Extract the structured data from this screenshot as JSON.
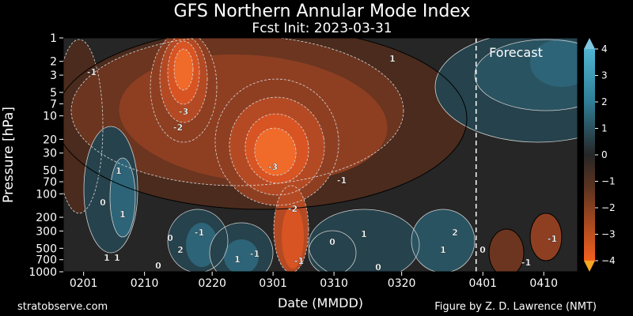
{
  "title": "GFS Northern Annular Mode Index",
  "subtitle": "Fcst Init: 2023-03-31",
  "credit_left": "stratobserve.com",
  "credit_right": "Figure by Z. D. Lawrence (NMT)",
  "forecast_label": "Forecast",
  "chart_data": {
    "type": "heatmap",
    "title": "GFS Northern Annular Mode Index",
    "xlabel": "Date (MMDD)",
    "ylabel": "Pressure [hPa]",
    "x_ticks": [
      "0201",
      "0210",
      "0220",
      "0301",
      "0310",
      "0320",
      "0401",
      "0410"
    ],
    "x_range": [
      "0129",
      "0415"
    ],
    "y_ticks": [
      1,
      2,
      3,
      5,
      7,
      10,
      20,
      30,
      50,
      70,
      100,
      200,
      300,
      500,
      700,
      1000
    ],
    "y_scale": "log",
    "y_range": [
      1000,
      1
    ],
    "forecast_start": "0331",
    "colorbar": {
      "range": [
        -4,
        4
      ],
      "ticks": [
        4,
        3,
        2,
        1,
        0,
        -1,
        -2,
        -3,
        -4
      ],
      "positive_color": "#3a9bb8",
      "negative_color": "#f05a1e",
      "neutral_color": "#2a2a2a"
    },
    "contour_labels": [
      "-1",
      "-2",
      "-3",
      "-3",
      "-2",
      "-1",
      "-1",
      "-1",
      "-1",
      "0",
      "0",
      "1",
      "1",
      "1",
      "2",
      "2",
      "1",
      "0",
      "0",
      "1",
      "0",
      "-1",
      "-1",
      "1",
      "0",
      "1",
      "1"
    ],
    "features": [
      {
        "date": "0216",
        "pressure": 2,
        "value": -3.6
      },
      {
        "date": "0217",
        "pressure": 10,
        "value": -3.0
      },
      {
        "date": "0303",
        "pressure": 30,
        "value": -3.5
      },
      {
        "date": "0301",
        "pressure": 200,
        "value": -2.5
      },
      {
        "date": "0207",
        "pressure": 70,
        "value": 1.5
      },
      {
        "date": "0224",
        "pressure": 500,
        "value": 2.2
      }
    ]
  }
}
